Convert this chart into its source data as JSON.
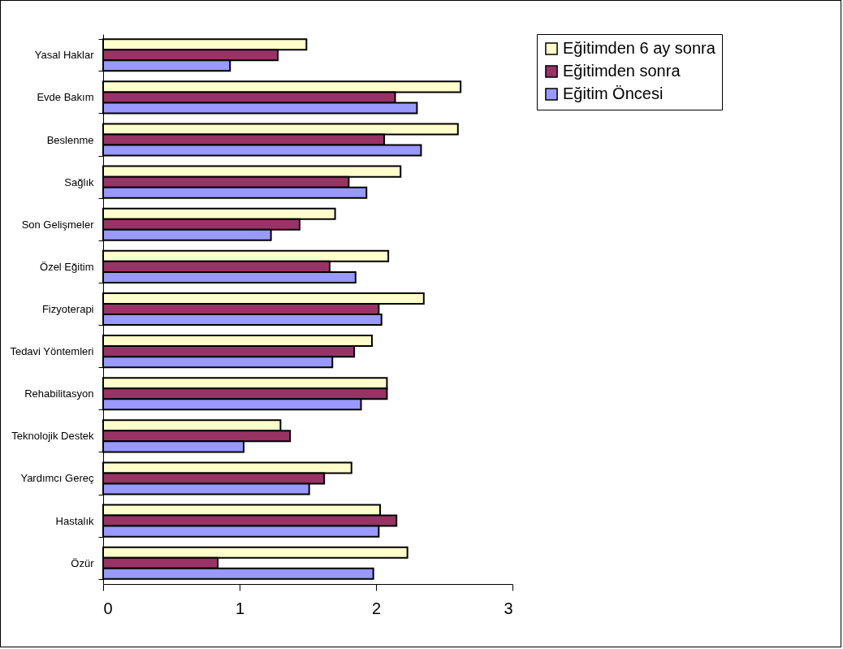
{
  "chart_data": {
    "type": "bar",
    "orientation": "horizontal",
    "categories": [
      "Yasal Haklar",
      "Evde Bakım",
      "Beslenme",
      "Sağlık",
      "Son Gelişmeler",
      "Özel Eğitim",
      "Fizyoterapi",
      "Tedavi Yöntemleri",
      "Rehabilitasyon",
      "Teknolojik Destek",
      "Yardımcı Gereç",
      "Hastalık",
      "Özür"
    ],
    "series": [
      {
        "name": "Eğitimden 6 ay sonra",
        "color": "#ffffcc",
        "values": [
          1.49,
          2.62,
          2.6,
          2.18,
          1.7,
          2.09,
          2.35,
          1.97,
          2.08,
          1.3,
          1.82,
          2.03,
          2.23
        ]
      },
      {
        "name": "Eğitimden sonra",
        "color": "#993366",
        "values": [
          1.28,
          2.14,
          2.06,
          1.8,
          1.44,
          1.66,
          2.02,
          1.84,
          2.08,
          1.37,
          1.62,
          2.15,
          0.84
        ]
      },
      {
        "name": "Eğitim Öncesi",
        "color": "#9999ff",
        "values": [
          0.93,
          2.3,
          2.33,
          1.93,
          1.23,
          1.85,
          2.04,
          1.68,
          1.89,
          1.03,
          1.51,
          2.02,
          1.98
        ]
      }
    ],
    "xlim": [
      0,
      3
    ],
    "xticks": [
      0,
      1,
      2,
      3
    ],
    "grid": false,
    "legend": "right"
  }
}
